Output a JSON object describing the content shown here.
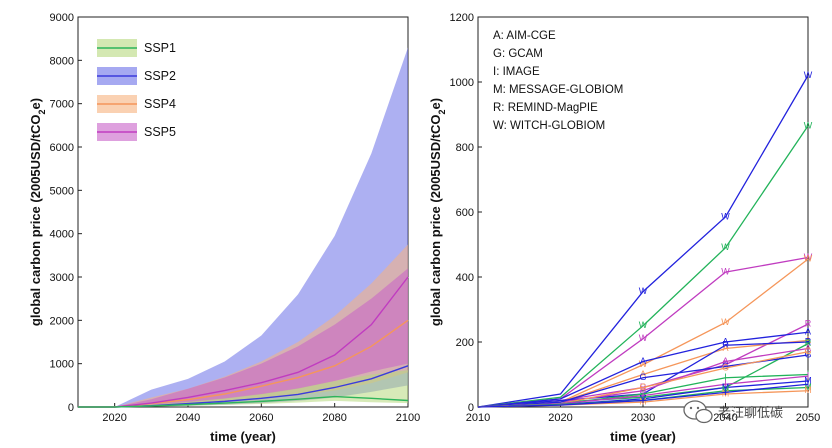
{
  "chart_data": [
    {
      "type": "area",
      "xlabel": "time (year)",
      "ylabel": "global carbon price (2005USD/tCO2e)",
      "ylabel_main": "global carbon price (2005USD/tCO",
      "ylabel_sub": "2",
      "ylabel_tail": "e)",
      "xlim": [
        2010,
        2100
      ],
      "ylim": [
        0,
        9000
      ],
      "xticks": [
        2020,
        2040,
        2060,
        2080,
        2100
      ],
      "yticks": [
        0,
        1000,
        2000,
        3000,
        4000,
        5000,
        6000,
        7000,
        8000,
        9000
      ],
      "legend_position": "top-left",
      "x": [
        2010,
        2020,
        2030,
        2040,
        2050,
        2060,
        2070,
        2080,
        2090,
        2100
      ],
      "series": [
        {
          "name": "SSP2",
          "color": "#3b3bdc",
          "fill": "#6a70e8",
          "median": [
            0,
            0,
            30,
            80,
            130,
            200,
            290,
            450,
            650,
            950
          ],
          "lower": [
            0,
            0,
            10,
            30,
            55,
            90,
            140,
            220,
            350,
            500
          ],
          "upper": [
            0,
            0,
            400,
            650,
            1050,
            1650,
            2600,
            3950,
            5850,
            8300
          ]
        },
        {
          "name": "SSP4",
          "color": "#f5965a",
          "fill": "#f7b27e",
          "median": [
            0,
            0,
            80,
            170,
            300,
            480,
            680,
            950,
            1400,
            2000
          ],
          "lower": [
            0,
            0,
            30,
            70,
            120,
            190,
            270,
            380,
            550,
            800
          ],
          "upper": [
            0,
            0,
            220,
            420,
            700,
            1050,
            1500,
            2100,
            2850,
            3750
          ]
        },
        {
          "name": "SSP5",
          "color": "#c03cc0",
          "fill": "#c860c8",
          "median": [
            0,
            0,
            90,
            220,
            380,
            560,
            800,
            1200,
            1900,
            3000
          ],
          "lower": [
            0,
            0,
            40,
            110,
            190,
            290,
            420,
            600,
            820,
            1000
          ],
          "upper": [
            0,
            0,
            180,
            420,
            680,
            1000,
            1400,
            1900,
            2500,
            3200
          ]
        },
        {
          "name": "SSP1",
          "color": "#2db45a",
          "fill": "#b7d87e",
          "median": [
            0,
            0,
            25,
            55,
            90,
            130,
            180,
            240,
            200,
            150
          ],
          "lower": [
            0,
            0,
            10,
            25,
            45,
            70,
            100,
            140,
            110,
            90
          ],
          "upper": [
            0,
            0,
            60,
            120,
            200,
            300,
            430,
            600,
            750,
            850
          ]
        }
      ],
      "legend": [
        "SSP1",
        "SSP2",
        "SSP4",
        "SSP5"
      ]
    },
    {
      "type": "line",
      "xlabel": "time (year)",
      "ylabel": "global carbon price (2005USD/tCO2e)",
      "ylabel_main": "global carbon price (2005USD/tCO",
      "ylabel_sub": "2",
      "ylabel_tail": "e)",
      "xlim": [
        2010,
        2050
      ],
      "ylim": [
        0,
        1200
      ],
      "xticks": [
        2010,
        2020,
        2030,
        2040,
        2050
      ],
      "yticks": [
        0,
        200,
        400,
        600,
        800,
        1000,
        1200
      ],
      "annotations": [
        "A: AIM-CGE",
        "G: GCAM",
        "I: IMAGE",
        "M: MESSAGE-GLOBIOM",
        "R: REMIND-MagPIE",
        "W: WITCH-GLOBIOM"
      ],
      "x": [
        2010,
        2020,
        2030,
        2040,
        2050
      ],
      "series": [
        {
          "model": "W",
          "ssp": "SSP2",
          "color": "#2222dd",
          "values": [
            0,
            40,
            355,
            585,
            1020
          ]
        },
        {
          "model": "W",
          "ssp": "SSP1",
          "color": "#22b35a",
          "values": [
            0,
            30,
            250,
            490,
            865
          ]
        },
        {
          "model": "W",
          "ssp": "SSP5",
          "color": "#c03cc0",
          "values": [
            0,
            25,
            210,
            415,
            460
          ]
        },
        {
          "model": "W",
          "ssp": "SSP4",
          "color": "#f5965a",
          "values": [
            0,
            15,
            130,
            260,
            455
          ]
        },
        {
          "model": "R",
          "ssp": "SSP5",
          "color": "#c03cc0",
          "values": [
            0,
            20,
            60,
            130,
            255
          ]
        },
        {
          "model": "A",
          "ssp": "SSP2",
          "color": "#2222dd",
          "values": [
            0,
            25,
            140,
            200,
            230
          ]
        },
        {
          "model": "A",
          "ssp": "SSP4",
          "color": "#f5965a",
          "values": [
            0,
            15,
            100,
            180,
            205
          ]
        },
        {
          "model": "R",
          "ssp": "SSP2",
          "color": "#2222dd",
          "values": [
            0,
            20,
            40,
            190,
            200
          ]
        },
        {
          "model": "R",
          "ssp": "SSP1",
          "color": "#22b35a",
          "values": [
            0,
            15,
            30,
            60,
            195
          ]
        },
        {
          "model": "A",
          "ssp": "SSP5",
          "color": "#c03cc0",
          "values": [
            0,
            15,
            50,
            140,
            180
          ]
        },
        {
          "model": "G",
          "ssp": "SSP2",
          "color": "#2222dd",
          "values": [
            0,
            15,
            90,
            125,
            160
          ]
        },
        {
          "model": "G",
          "ssp": "SSP4",
          "color": "#f5965a",
          "values": [
            0,
            10,
            60,
            120,
            170
          ]
        },
        {
          "model": "I",
          "ssp": "SSP1",
          "color": "#22b35a",
          "values": [
            0,
            10,
            40,
            90,
            100
          ]
        },
        {
          "model": "I",
          "ssp": "SSP5",
          "color": "#c03cc0",
          "values": [
            0,
            10,
            35,
            70,
            95
          ]
        },
        {
          "model": "M",
          "ssp": "SSP2",
          "color": "#2222dd",
          "values": [
            0,
            8,
            25,
            60,
            80
          ]
        },
        {
          "model": "M",
          "ssp": "SSP1",
          "color": "#22b35a",
          "values": [
            0,
            8,
            20,
            50,
            60
          ]
        },
        {
          "model": "M",
          "ssp": "SSP4",
          "color": "#f5965a",
          "values": [
            0,
            6,
            15,
            40,
            50
          ]
        },
        {
          "model": "I",
          "ssp": "SSP2",
          "color": "#2222dd",
          "values": [
            0,
            6,
            20,
            45,
            70
          ]
        }
      ]
    }
  ],
  "watermark": "老汪聊低碳"
}
